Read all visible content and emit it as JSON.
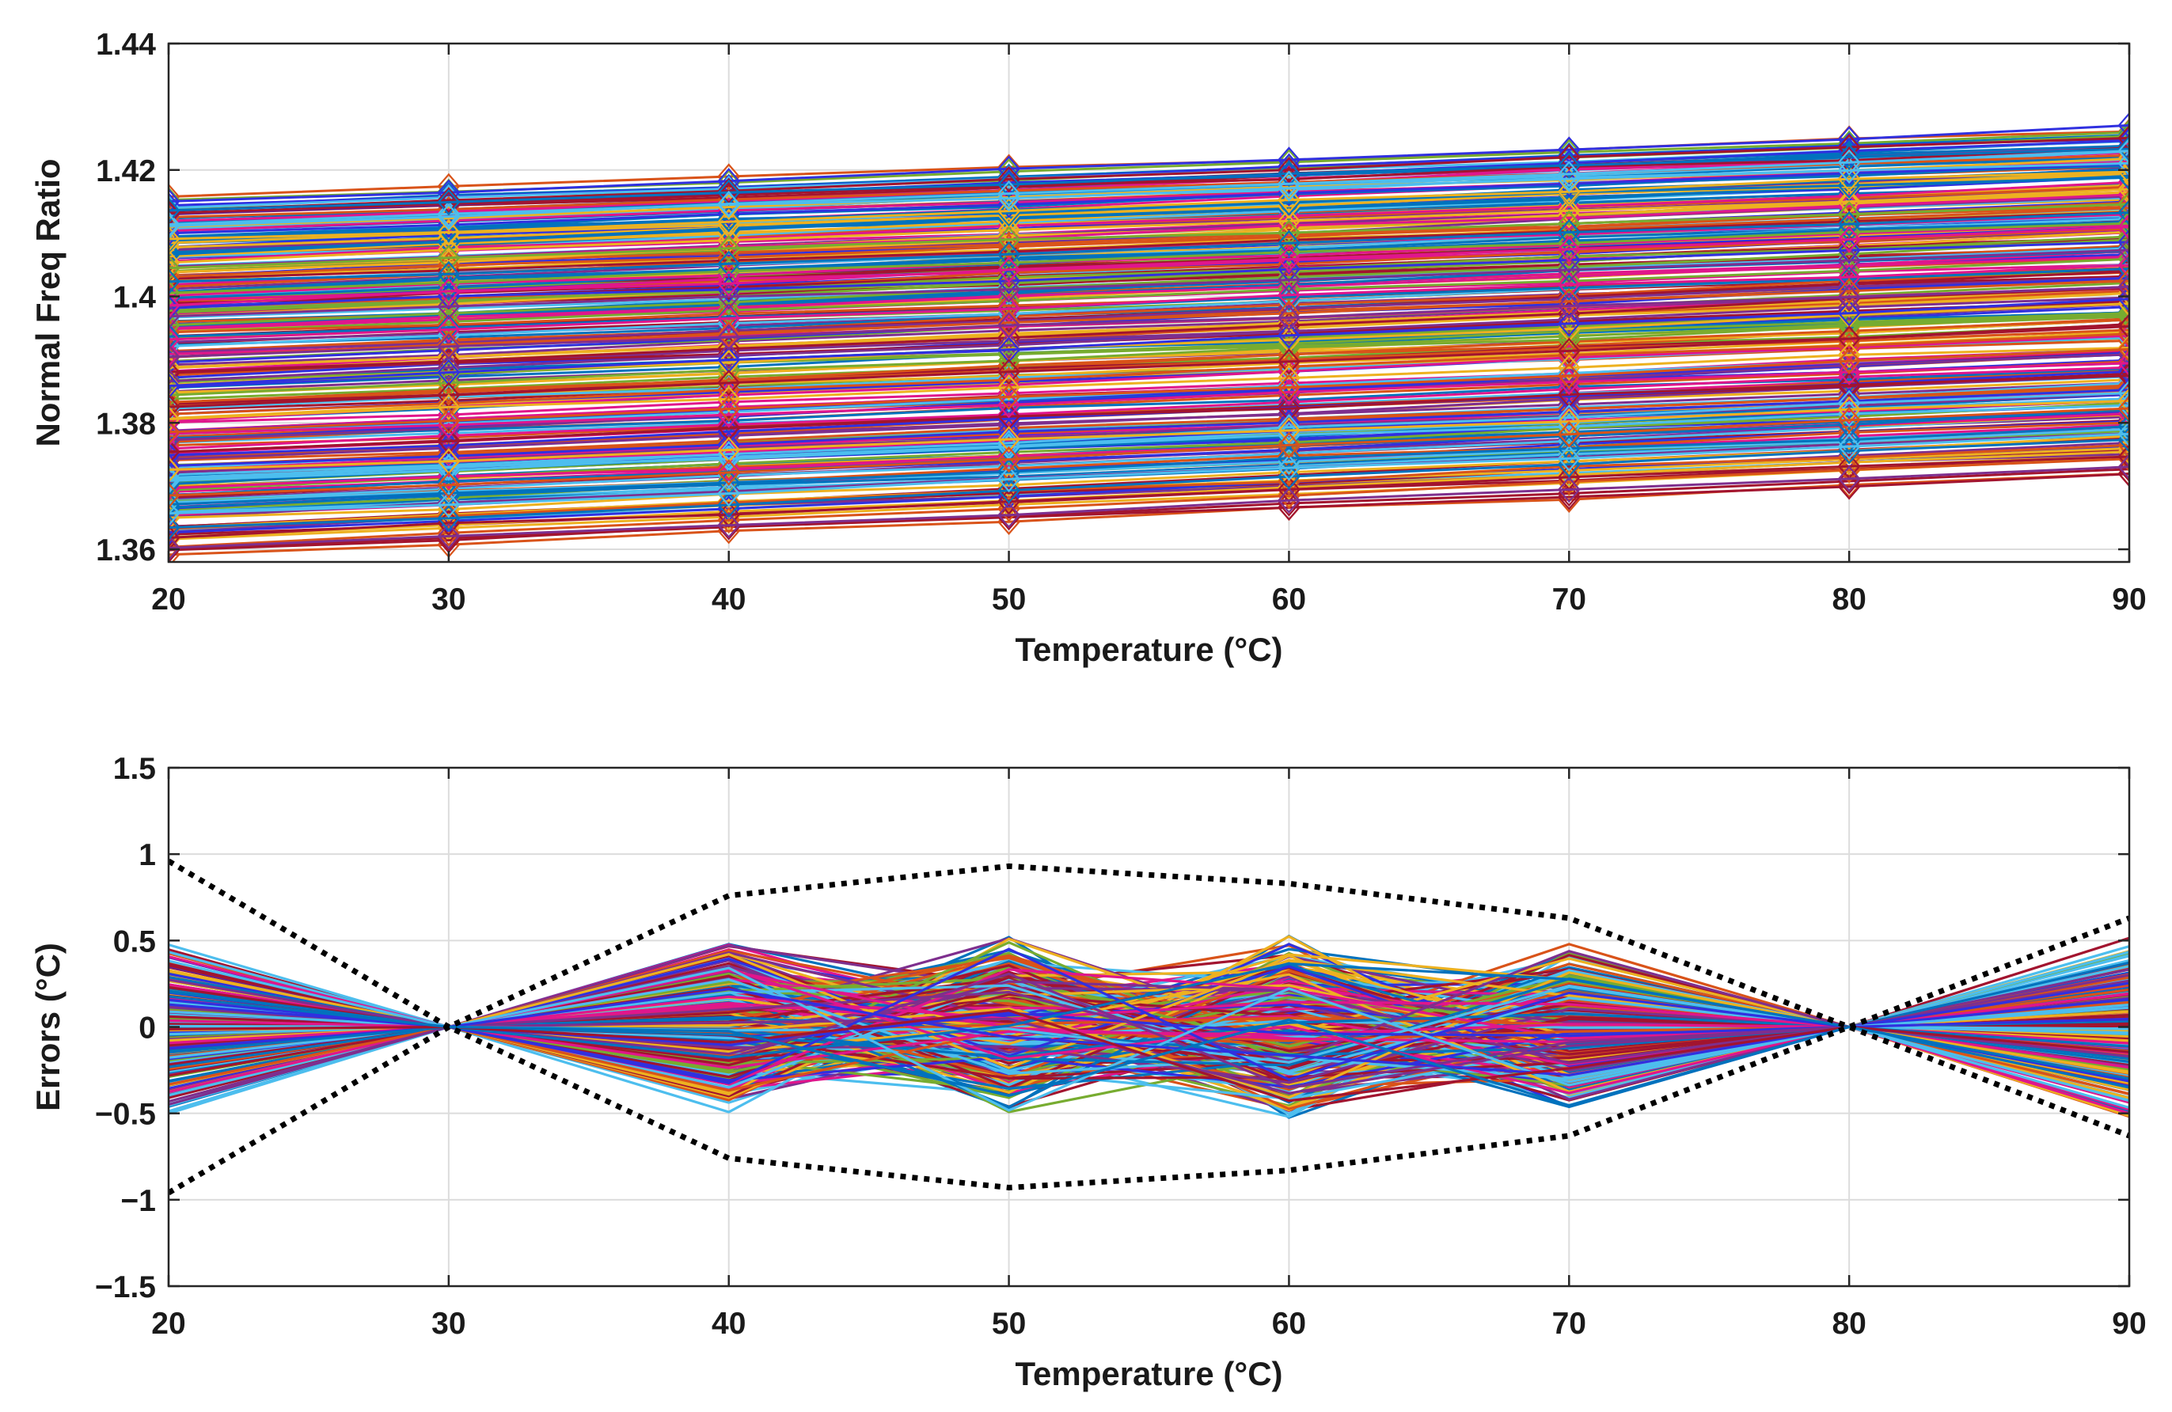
{
  "chart_data": [
    {
      "type": "line",
      "marker": "diamond",
      "title": "",
      "xlabel": "Temperature (°C)",
      "ylabel": "Normal Freq Ratio",
      "x": [
        20,
        30,
        40,
        50,
        60,
        70,
        80,
        90
      ],
      "xticks": [
        "20",
        "30",
        "40",
        "50",
        "60",
        "70",
        "80",
        "90"
      ],
      "xlim": [
        20,
        90
      ],
      "yticks": [
        "1.36",
        "1.38",
        "1.4",
        "1.42",
        "1.44"
      ],
      "ytick_values": [
        1.36,
        1.38,
        1.4,
        1.42,
        1.44
      ],
      "ylim": [
        1.358,
        1.44
      ],
      "grid": true,
      "series_range": {
        "count": 300,
        "start_min": 1.359,
        "start_max": 1.416,
        "end_min": 1.372,
        "end_max": 1.427
      },
      "colors": [
        "#0072BD",
        "#D95319",
        "#EDB120",
        "#7E2F8E",
        "#77AC30",
        "#4DBEEE",
        "#A2142F",
        "#E0168C",
        "#3030E0"
      ]
    },
    {
      "type": "line",
      "title": "",
      "xlabel": "Temperature (°C)",
      "ylabel": "Errors (°C)",
      "x": [
        20,
        30,
        40,
        50,
        60,
        70,
        80,
        90
      ],
      "xticks": [
        "20",
        "30",
        "40",
        "50",
        "60",
        "70",
        "80",
        "90"
      ],
      "xlim": [
        20,
        90
      ],
      "yticks": [
        "1.5",
        "1",
        "0.5",
        "0",
        "−0.5",
        "−1",
        "−1.5"
      ],
      "ytick_values": [
        1.5,
        1,
        0.5,
        0,
        -0.5,
        -1,
        -1.5
      ],
      "ylim": [
        -1.5,
        1.5
      ],
      "grid": true,
      "series_range": {
        "count": 300,
        "max_abs_error": [
          0.55,
          0,
          0.52,
          0.55,
          0.55,
          0.52,
          0,
          0.55
        ]
      },
      "bounds": {
        "style": "dotted",
        "color": "#000000",
        "upper": [
          0.96,
          0,
          0.76,
          0.93,
          0.83,
          0.63,
          0,
          0.63
        ],
        "lower": [
          -0.96,
          0,
          -0.76,
          -0.93,
          -0.83,
          -0.63,
          0,
          -0.63
        ]
      },
      "colors": [
        "#0072BD",
        "#D95319",
        "#EDB120",
        "#7E2F8E",
        "#77AC30",
        "#4DBEEE",
        "#A2142F",
        "#E0168C",
        "#3030E0"
      ]
    }
  ]
}
